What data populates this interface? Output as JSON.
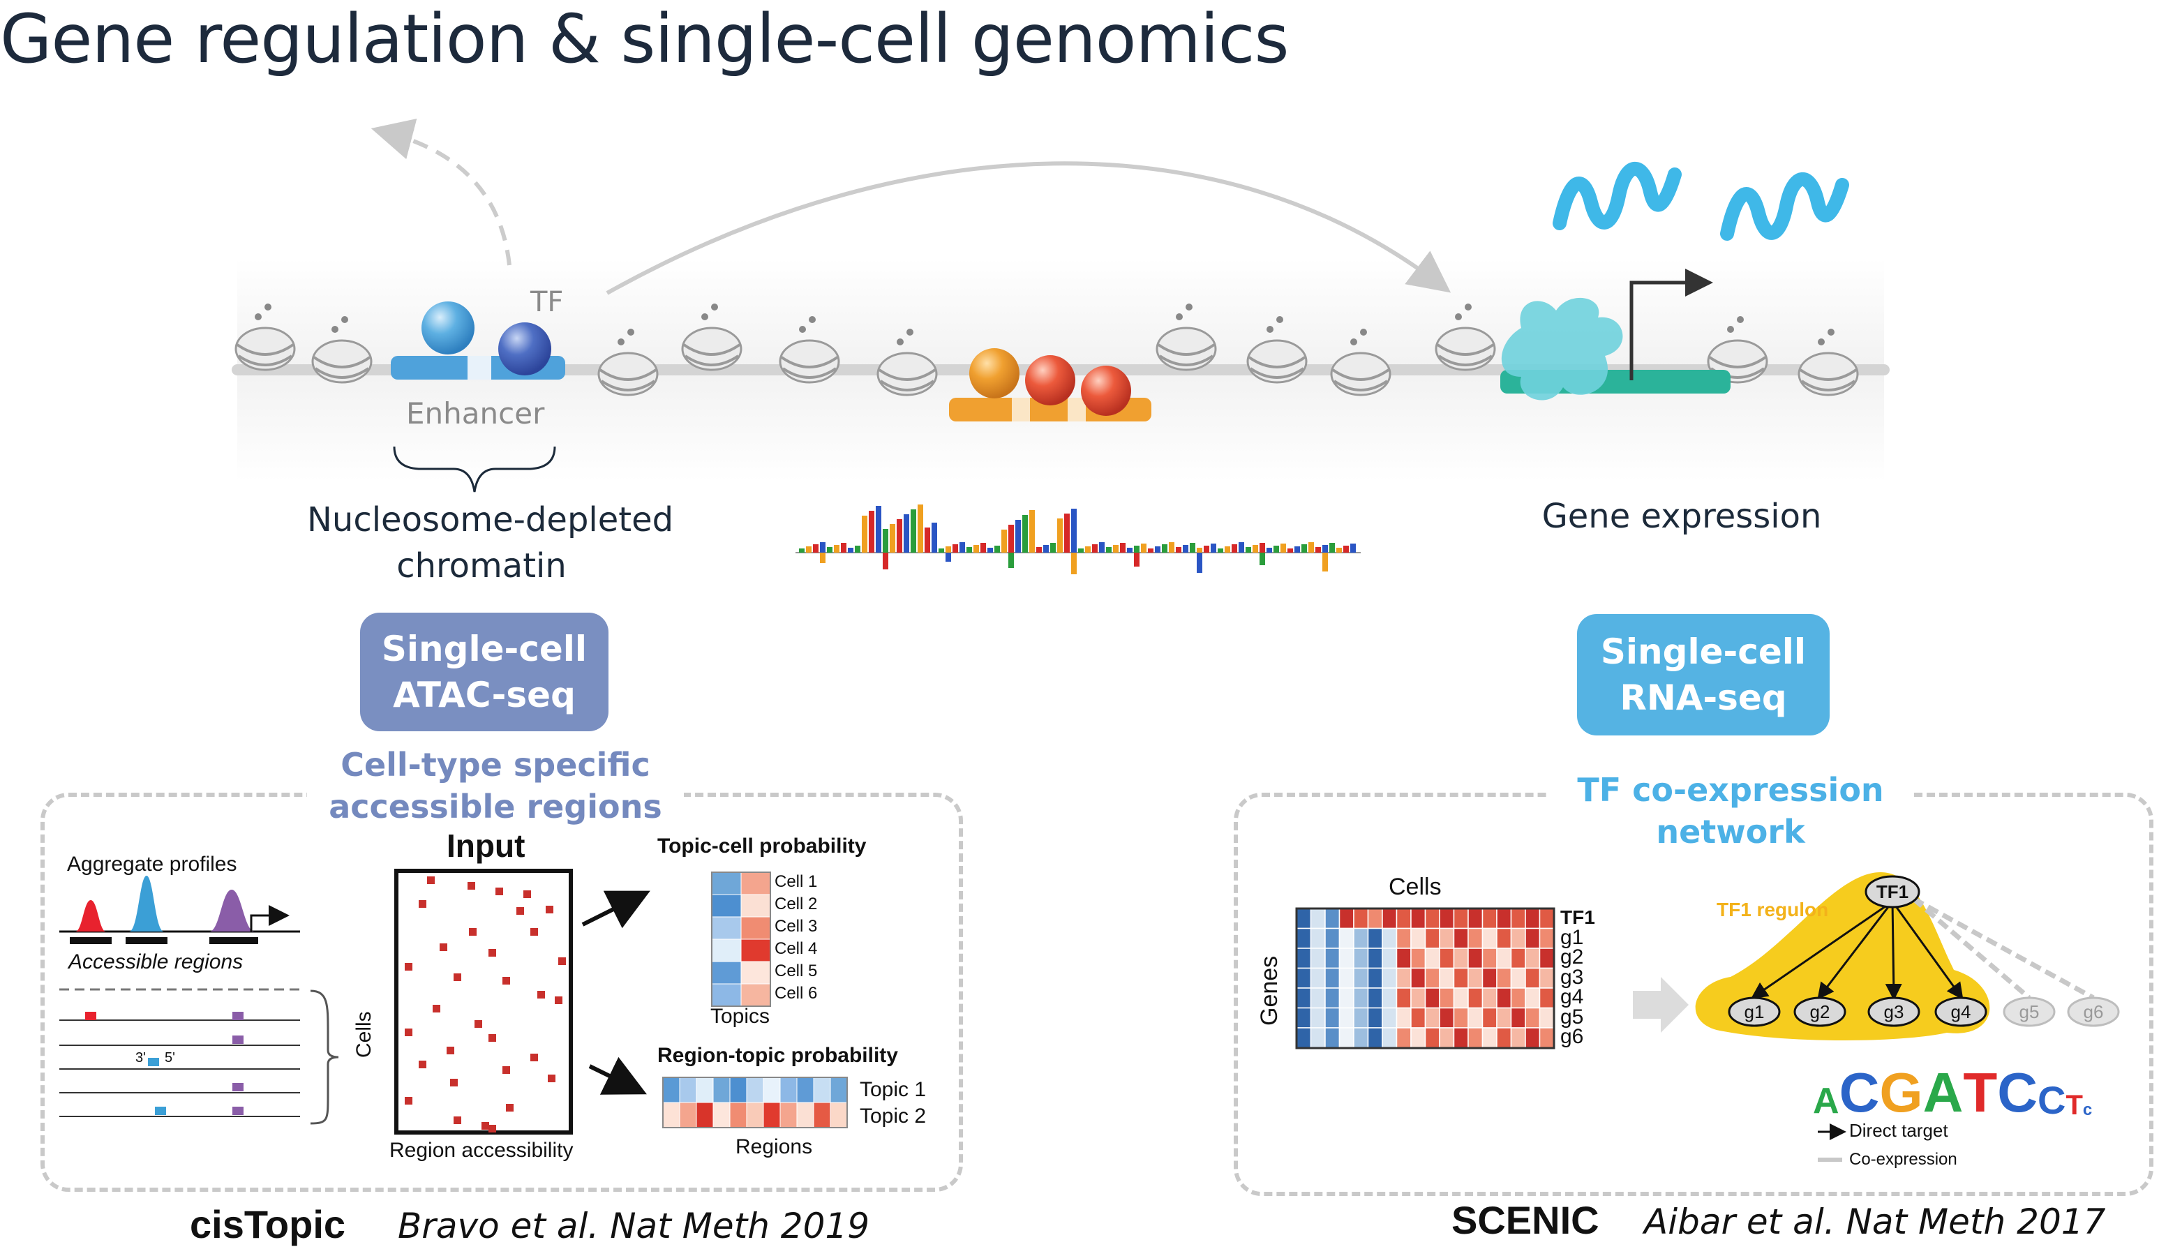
{
  "title": "Gene regulation & single-cell genomics",
  "chromatin": {
    "tf_label": "TF",
    "enhancer_label": "Enhancer",
    "depleted_label_line1": "Nucleosome-depleted",
    "depleted_label_line2": "chromatin",
    "gene_expression_label": "Gene expression"
  },
  "atac": {
    "badge_line1": "Single-cell",
    "badge_line2": "ATAC-seq",
    "subtitle_line1": "Cell-type specific",
    "subtitle_line2": "accessible regions",
    "color": "#7a8fc1",
    "subtitle_color": "#7489be"
  },
  "rna": {
    "badge_line1": "Single-cell",
    "badge_line2": "RNA-seq",
    "subtitle_line1": "TF co-expression",
    "subtitle_line2": "network",
    "color": "#55b3e3",
    "subtitle_color": "#4cb1e6"
  },
  "cistopic": {
    "aggregate_profiles": "Aggregate profiles",
    "accessible_regions": "Accessible regions",
    "three_prime": "3'",
    "five_prime": "5'",
    "cells_label": "Cells",
    "input_label": "Input",
    "region_accessibility": "Region accessibility",
    "topic_cell_title": "Topic-cell probability",
    "cell_labels": [
      "Cell 1",
      "Cell 2",
      "Cell 3",
      "Cell 4",
      "Cell 5",
      "Cell 6"
    ],
    "topics_label": "Topics",
    "region_topic_title": "Region-topic probability",
    "topic_labels": [
      "Topic 1",
      "Topic 2"
    ],
    "regions_label": "Regions",
    "tool_name": "cisTopic",
    "citation": "Bravo et al. Nat Meth 2019"
  },
  "scenic": {
    "cells_label": "Cells",
    "genes_label": "Genes",
    "row_labels": [
      "TF1",
      "g1",
      "g2",
      "g3",
      "g4",
      "g5",
      "g6"
    ],
    "regulon_label": "TF1 regulon",
    "tf_node": "TF1",
    "target_nodes": [
      "g1",
      "g2",
      "g3",
      "g4"
    ],
    "coexp_nodes": [
      "g5",
      "g6"
    ],
    "motif_letters": [
      "A",
      "C",
      "G",
      "A",
      "T",
      "C",
      "C",
      "T",
      "c"
    ],
    "legend_direct": "Direct target",
    "legend_coexp": "Co-expression",
    "tool_name": "SCENIC",
    "citation": "Aibar et al. Nat Meth 2017"
  }
}
